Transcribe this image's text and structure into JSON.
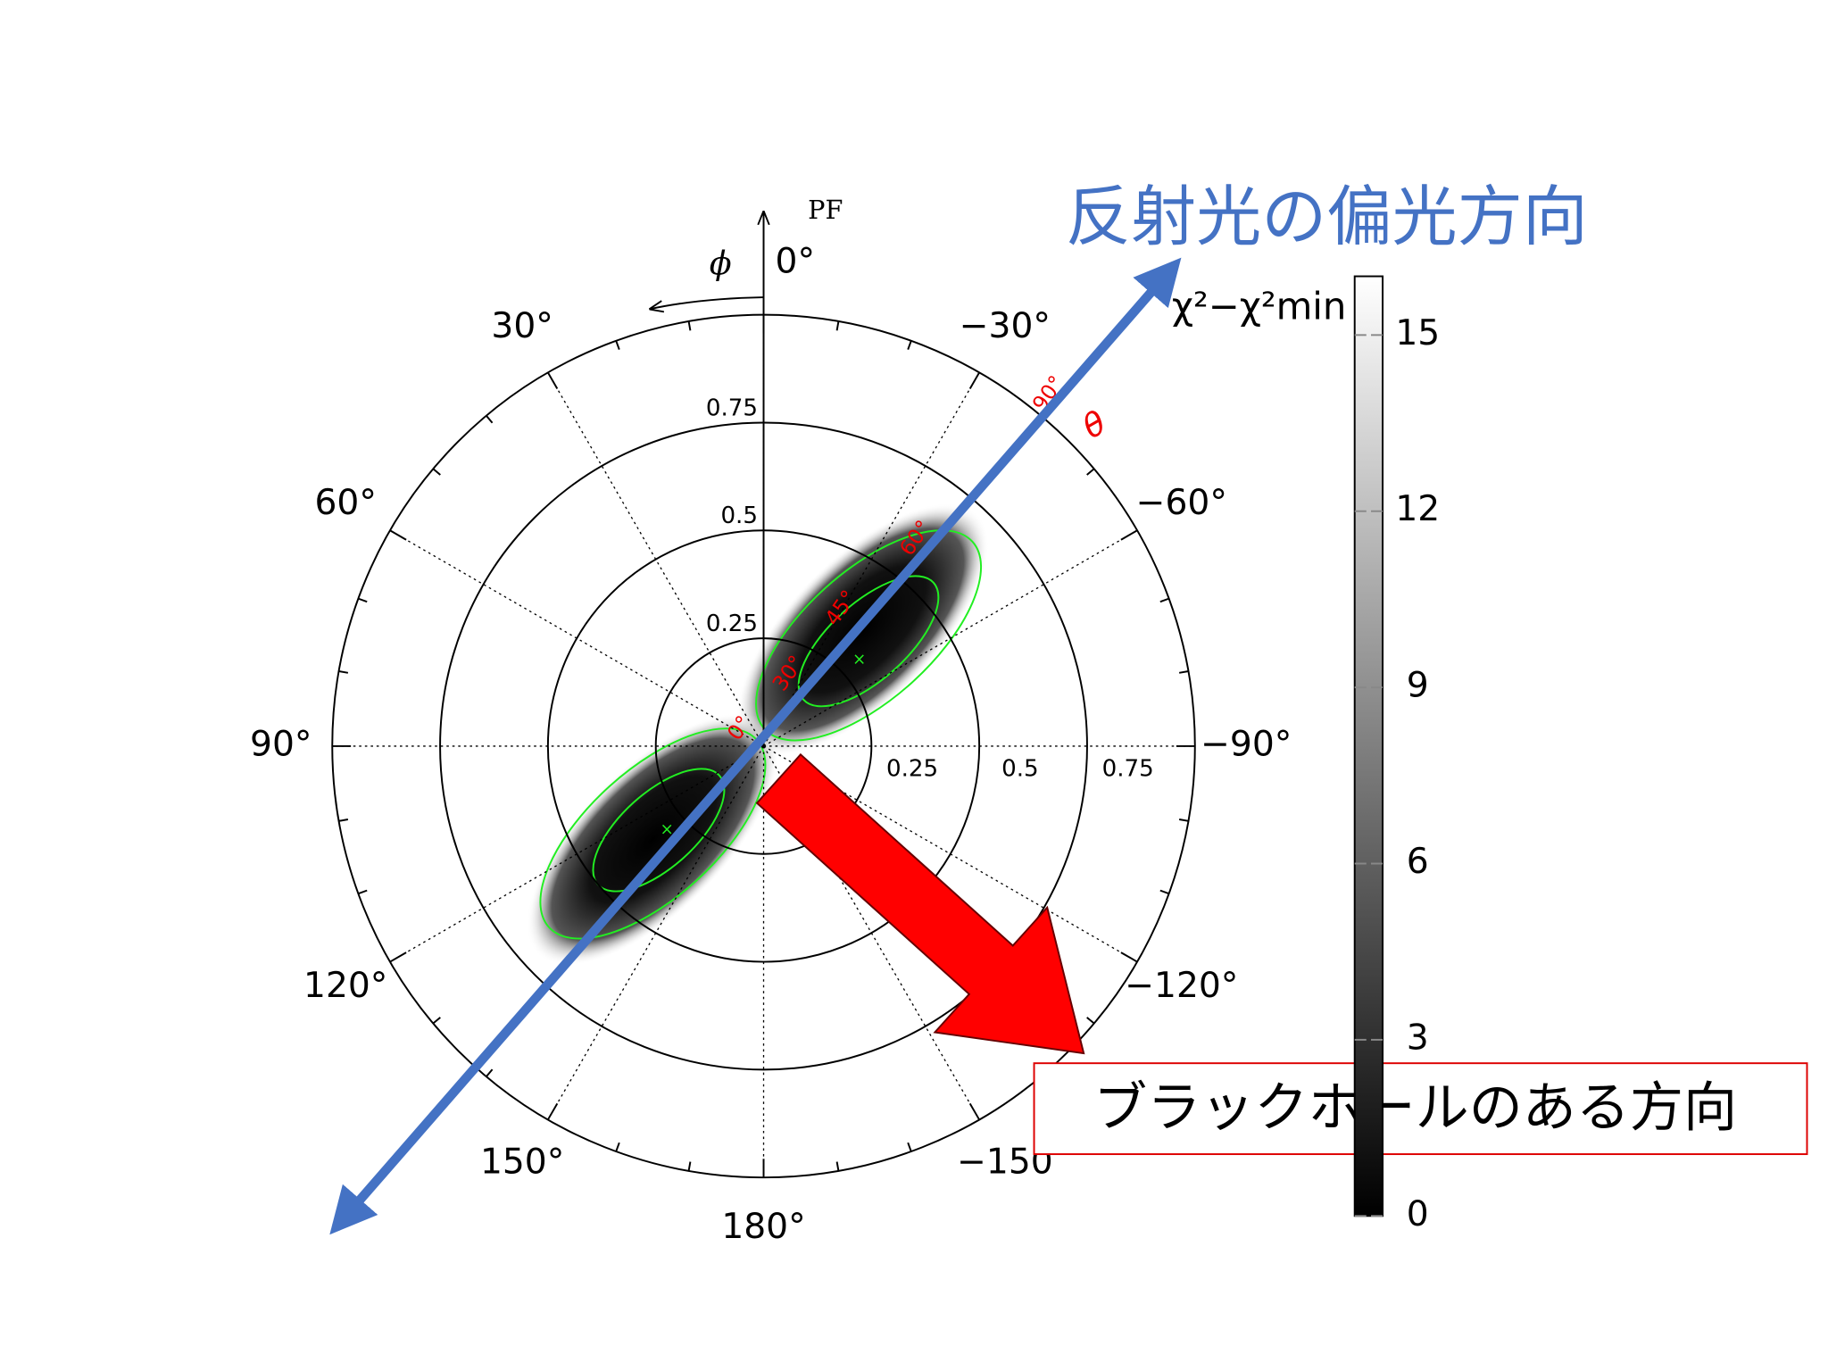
{
  "title": "反射光の偏光方向",
  "annotation": "ブラックホールのある方向",
  "plot": {
    "axis_label": "PF",
    "phi_label": "ϕ",
    "theta_label": "θ",
    "radial_ticks": [
      0.25,
      0.5,
      0.75
    ],
    "rlim": [
      0,
      1
    ],
    "angle_ticks": [
      {
        "value": 0,
        "label": "0°"
      },
      {
        "value": 30,
        "label": "30°"
      },
      {
        "value": -30,
        "label": "−30°"
      },
      {
        "value": 60,
        "label": "60°"
      },
      {
        "value": -60,
        "label": "−60°"
      },
      {
        "value": 90,
        "label": "90°"
      },
      {
        "value": -90,
        "label": "−90°"
      },
      {
        "value": 120,
        "label": "120°"
      },
      {
        "value": -120,
        "label": "−120°"
      },
      {
        "value": 150,
        "label": "150°"
      },
      {
        "value": -150,
        "label": "−150"
      },
      {
        "value": 180,
        "label": "180°"
      }
    ],
    "theta_marks": [
      "90°",
      "60°",
      "45°",
      "30°",
      "0°"
    ]
  },
  "colorbar": {
    "label": "χ²−χ²min",
    "lim": [
      0,
      16
    ],
    "ticks": [
      0,
      3,
      6,
      9,
      12,
      15
    ]
  }
}
